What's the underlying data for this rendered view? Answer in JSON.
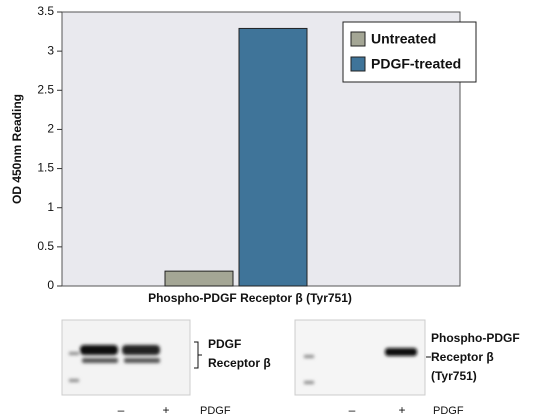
{
  "chart_data": {
    "type": "bar",
    "categories": [
      "Phospho-PDGF Receptor β (Tyr751)"
    ],
    "series": [
      {
        "name": "Untreated",
        "color": "#a4a695",
        "values": [
          0.19
        ]
      },
      {
        "name": "PDGF-treated",
        "color": "#3f7499",
        "values": [
          3.29
        ]
      }
    ],
    "y_label": "OD 450nm Reading",
    "ylim": [
      0,
      3.5
    ],
    "yticks": [
      0,
      0.5,
      1,
      1.5,
      2,
      2.5,
      3,
      3.5
    ],
    "legend": "top-right",
    "grid": false
  },
  "blots": [
    {
      "label_lines": [
        "PDGF",
        "Receptor β"
      ],
      "lanes": [
        "–",
        "+"
      ],
      "treatment": "PDGF"
    },
    {
      "label_lines": [
        "Phospho-PDGF",
        "Receptor β",
        "(Tyr751)"
      ],
      "lanes": [
        "–",
        "+"
      ],
      "treatment": "PDGF"
    }
  ]
}
